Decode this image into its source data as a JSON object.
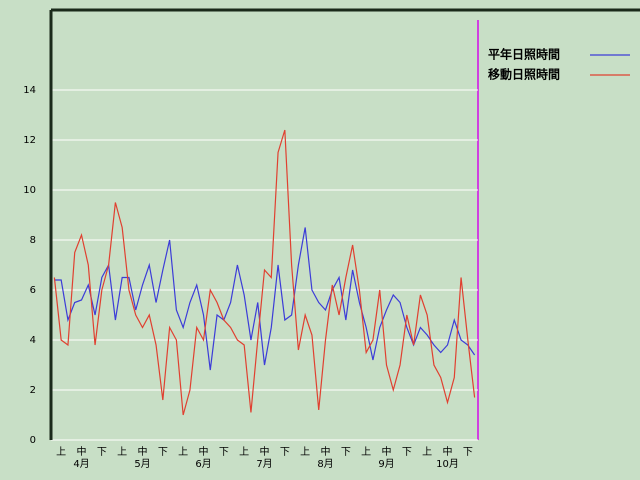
{
  "chart_data": {
    "type": "line",
    "categories": [
      null,
      "上",
      null,
      null,
      "中",
      null,
      null,
      "下",
      null,
      null,
      "上",
      null,
      null,
      "中",
      null,
      null,
      "下",
      null,
      null,
      "上",
      null,
      null,
      "中",
      null,
      null,
      "下",
      null,
      null,
      "上",
      null,
      null,
      "中",
      null,
      null,
      "下",
      null,
      null,
      "上",
      null,
      null,
      "中",
      null,
      null,
      "下",
      null,
      null,
      "上",
      null,
      null,
      "中",
      null,
      null,
      "下",
      null,
      null,
      "上",
      null,
      null,
      "中",
      null,
      null,
      "下",
      null
    ],
    "month_labels": [
      "4月",
      "5月",
      "6月",
      "7月",
      "8月",
      "9月",
      "10月"
    ],
    "series": [
      {
        "name": "平年日照時間",
        "color": "#3c3cd8",
        "values": [
          6.4,
          6.4,
          4.8,
          5.5,
          5.6,
          6.2,
          5.0,
          6.5,
          7.0,
          4.8,
          6.5,
          6.5,
          5.2,
          6.2,
          7.0,
          5.5,
          6.8,
          8.0,
          5.2,
          4.5,
          5.5,
          6.2,
          5.0,
          2.8,
          5.0,
          4.8,
          5.5,
          7.0,
          5.8,
          4.0,
          5.5,
          3.0,
          4.5,
          7.0,
          4.8,
          5.0,
          7.0,
          8.5,
          6.0,
          5.5,
          5.2,
          6.0,
          6.5,
          4.8,
          6.8,
          5.5,
          4.5,
          3.2,
          4.5,
          5.2,
          5.8,
          5.5,
          4.5,
          3.8,
          4.5,
          4.2,
          3.8,
          3.5,
          3.8,
          4.8,
          4.0,
          3.8,
          3.4
        ]
      },
      {
        "name": "移動日照時間",
        "color": "#e04030",
        "values": [
          6.5,
          4.0,
          3.8,
          7.5,
          8.2,
          7.0,
          3.8,
          6.0,
          7.0,
          9.5,
          8.5,
          6.0,
          5.0,
          4.5,
          5.0,
          3.8,
          1.6,
          4.5,
          4.0,
          1.0,
          2.0,
          4.5,
          4.0,
          6.0,
          5.5,
          4.8,
          4.5,
          4.0,
          3.8,
          1.1,
          4.0,
          6.8,
          6.5,
          11.5,
          12.4,
          7.0,
          3.6,
          5.0,
          4.2,
          1.2,
          4.0,
          6.2,
          5.0,
          6.5,
          7.8,
          6.0,
          3.5,
          4.0,
          6.0,
          3.0,
          2.0,
          3.0,
          5.0,
          3.8,
          5.8,
          5.0,
          3.0,
          2.5,
          1.5,
          2.5,
          6.5,
          4.0,
          1.7
        ]
      }
    ],
    "ylim": [
      0,
      17.2
    ],
    "yticks": [
      0,
      2,
      4,
      6,
      8,
      10,
      12,
      14
    ],
    "grid": true
  }
}
